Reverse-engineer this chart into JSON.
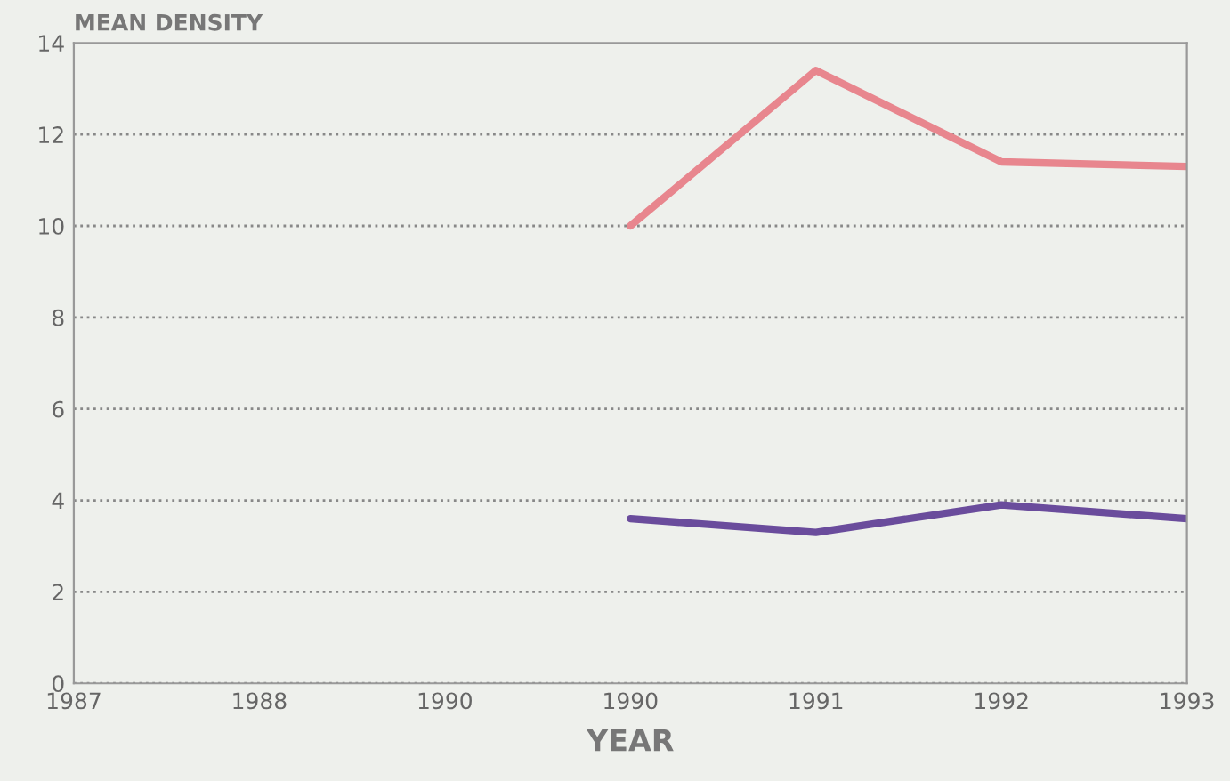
{
  "chart_data": {
    "type": "line",
    "xlabel": "YEAR",
    "ylabel": "MEAN DENSITY",
    "categories": [
      "1987",
      "1988",
      "1990",
      "1990",
      "1991",
      "1992",
      "1993"
    ],
    "series": [
      {
        "color": "#e8868e",
        "values": [
          null,
          null,
          null,
          10.0,
          13.4,
          11.4,
          11.3
        ]
      },
      {
        "color": "#6a4c9c",
        "values": [
          null,
          null,
          null,
          3.6,
          3.3,
          3.9,
          3.6
        ]
      }
    ],
    "ylim": [
      0,
      14
    ],
    "yticks": [
      0,
      2,
      4,
      6,
      8,
      10,
      12,
      14
    ],
    "grid": "y",
    "line_style": "solid",
    "marker": "none"
  }
}
